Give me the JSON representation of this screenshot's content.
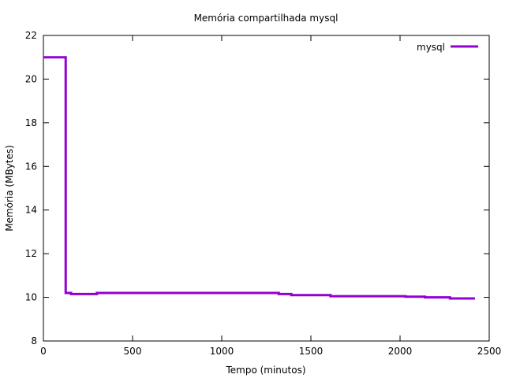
{
  "chart_data": {
    "type": "line",
    "title": "Memória compartilhada mysql",
    "xlabel": "Tempo (minutos)",
    "ylabel": "Memória (MBytes)",
    "xlim": [
      0,
      2500
    ],
    "ylim": [
      8,
      22
    ],
    "xticks": [
      0,
      500,
      1000,
      1500,
      2000,
      2500
    ],
    "yticks": [
      8,
      10,
      12,
      14,
      16,
      18,
      20,
      22
    ],
    "grid": false,
    "legend_position": "top-right",
    "step": true,
    "series": [
      {
        "name": "mysql",
        "color": "#9400d3",
        "x": [
          0,
          125,
          155,
          300,
          500,
          1320,
          1390,
          1610,
          2030,
          2140,
          2280,
          2420
        ],
        "y": [
          21.0,
          10.2,
          10.15,
          10.2,
          10.2,
          10.15,
          10.1,
          10.05,
          10.03,
          10.0,
          9.95,
          9.95
        ]
      }
    ]
  }
}
